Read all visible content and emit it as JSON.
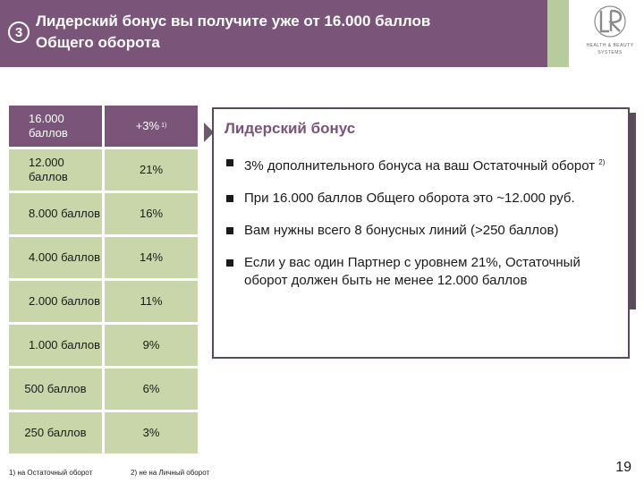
{
  "header": {
    "step_number": "3",
    "title_line1": "Лидерский бонус вы получите уже от 16.000 баллов",
    "title_line2": "Общего оборота",
    "logo": {
      "mark": "LR",
      "line1": "HEALTH & BEAUTY",
      "line2": "SYSTEMS"
    },
    "colors": {
      "header_bg": "#7a5479",
      "stripe": "#b7cc9c",
      "table_cell": "#c8d6aa"
    }
  },
  "table": {
    "rows": [
      {
        "points": "16.000 баллов",
        "bonus": "+3%",
        "bonus_note": "1)"
      },
      {
        "points": "12.000 баллов",
        "bonus": "21%"
      },
      {
        "points": "8.000 баллов",
        "bonus": "16%"
      },
      {
        "points": "4.000 баллов",
        "bonus": "14%"
      },
      {
        "points": "2.000 баллов",
        "bonus": "11%"
      },
      {
        "points": "1.000 баллов",
        "bonus": "9%"
      },
      {
        "points": "500 баллов",
        "bonus": "6%"
      },
      {
        "points": "250 баллов",
        "bonus": "3%"
      }
    ]
  },
  "info_box": {
    "title": "Лидерский бонус",
    "bullets": [
      {
        "text": "3% дополнительного бонуса на ваш Остаточный оборот",
        "note": "2)"
      },
      {
        "text": "При 16.000 баллов Общего оборота это ~12.000 руб."
      },
      {
        "text": "Вам нужны всего 8 бонусных линий (>250 баллов)"
      },
      {
        "text": "Если у вас один Партнер с уровнем 21%, Остаточный оборот должен быть не менее 12.000 баллов"
      }
    ]
  },
  "footer": {
    "note1": "1)  на Остаточный оборот",
    "note2": "2) не на Личный оборот",
    "page_number": "19"
  }
}
